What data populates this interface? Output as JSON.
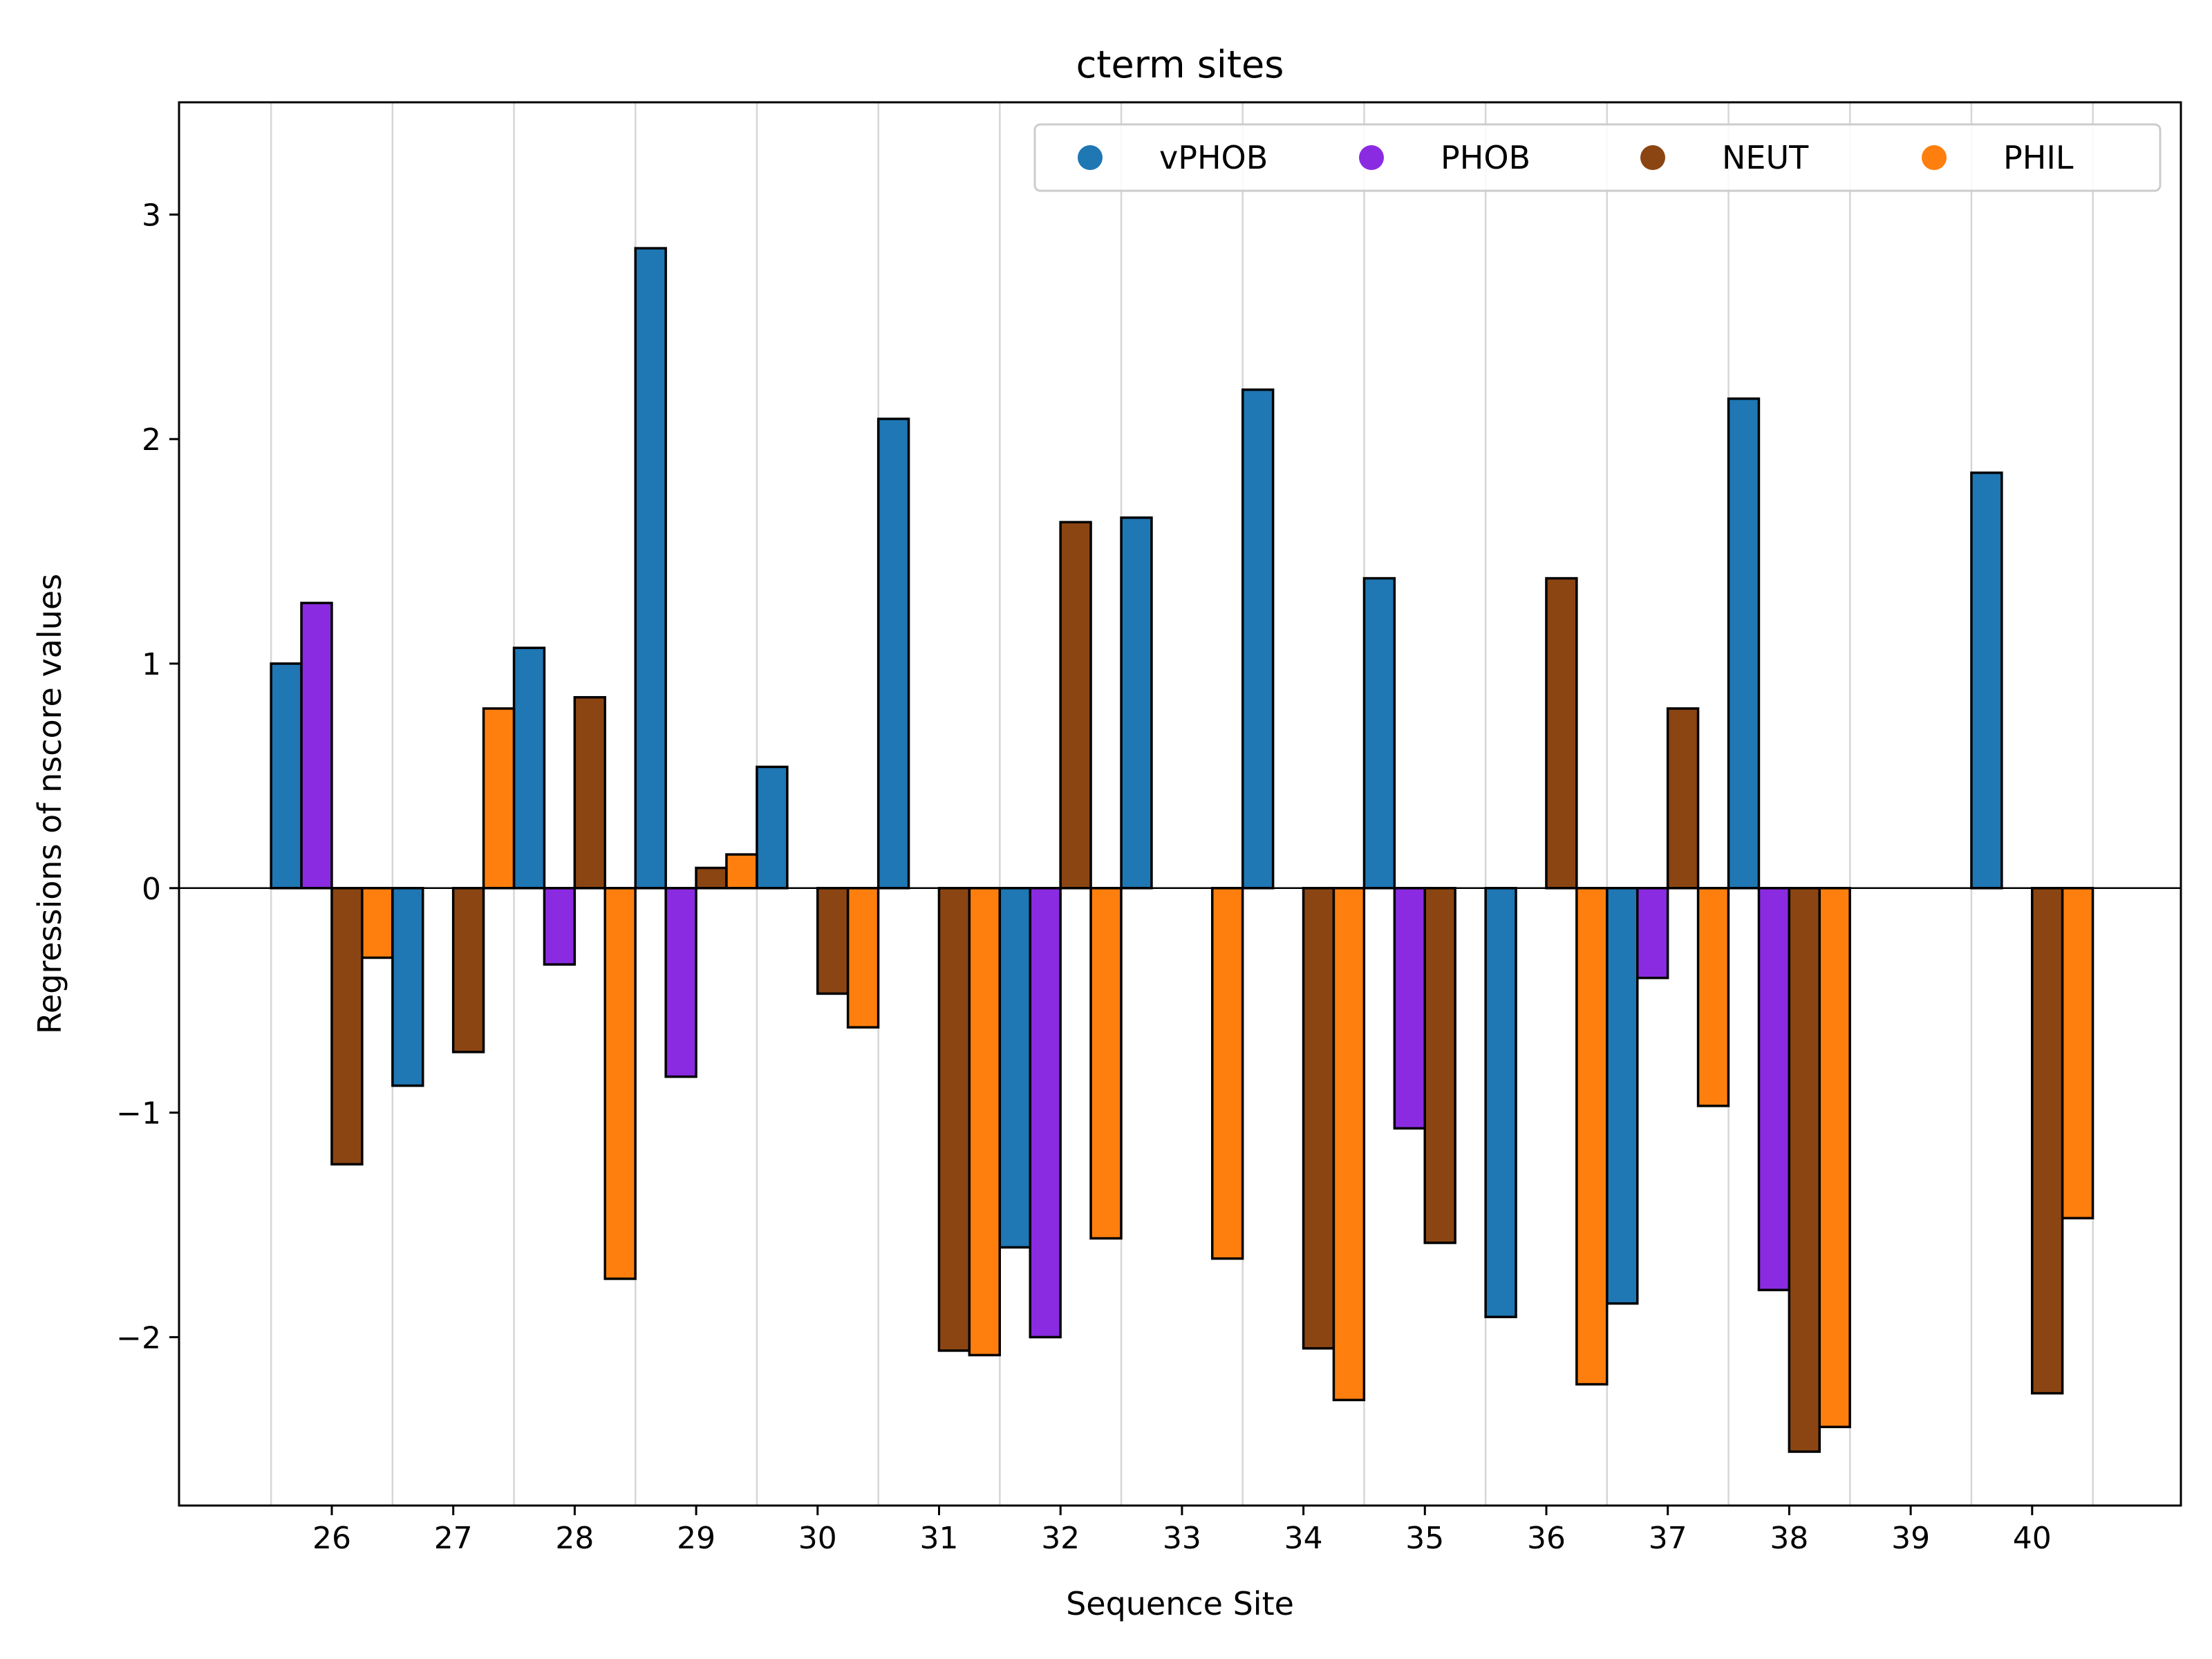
{
  "chart_data": {
    "type": "bar",
    "title": "cterm sites",
    "xlabel": "Sequence Site",
    "ylabel": "Regressions of nscore values",
    "ylim": [
      -2.75,
      3.5
    ],
    "yticks": [
      -2,
      -1,
      0,
      1,
      2,
      3
    ],
    "ytick_labels": [
      "−2",
      "−1",
      "0",
      "1",
      "2",
      "3"
    ],
    "categories": [
      "26",
      "27",
      "28",
      "29",
      "30",
      "31",
      "32",
      "33",
      "34",
      "35",
      "36",
      "37",
      "38",
      "39",
      "40"
    ],
    "grid": "vertical",
    "legend": "top-right",
    "series": [
      {
        "name": "vPHOB",
        "color": "#1f77b4",
        "values": [
          1.0,
          -0.88,
          1.07,
          2.85,
          0.54,
          2.09,
          -1.6,
          1.65,
          2.22,
          1.38,
          -1.91,
          -1.85,
          2.18,
          null,
          1.85
        ]
      },
      {
        "name": "PHOB",
        "color": "#8a2be2",
        "values": [
          1.27,
          null,
          -0.34,
          -0.84,
          null,
          null,
          -2.0,
          null,
          null,
          -1.07,
          null,
          -0.4,
          -1.79,
          null,
          null
        ]
      },
      {
        "name": "NEUT",
        "color": "#8b4513",
        "values": [
          -1.23,
          -0.73,
          0.85,
          0.09,
          -0.47,
          -2.06,
          1.63,
          null,
          -2.05,
          -1.58,
          1.38,
          0.8,
          -2.51,
          null,
          -2.25
        ]
      },
      {
        "name": "PHIL",
        "color": "#ff7f0e",
        "values": [
          -0.31,
          0.8,
          -1.74,
          0.15,
          -0.62,
          -2.08,
          -1.56,
          -1.65,
          -2.28,
          null,
          -2.21,
          -0.97,
          -2.4,
          null,
          -1.47
        ]
      }
    ]
  }
}
